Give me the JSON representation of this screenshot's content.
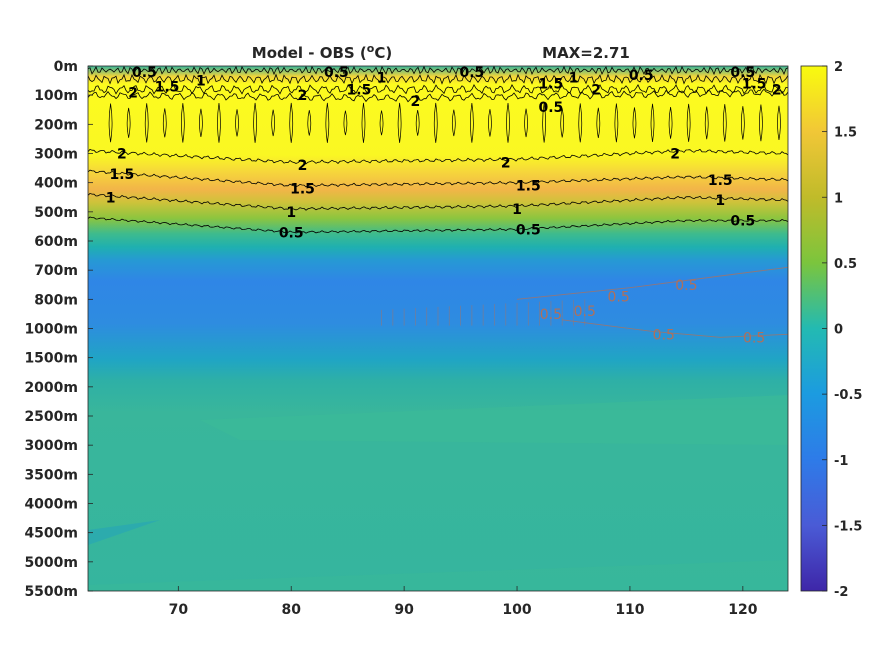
{
  "chart_data": {
    "type": "heatmap",
    "title": "Model - OBS (°C)",
    "title_main": "Model - OBS (",
    "title_sup": "o",
    "title_end": "C)",
    "annotation": "MAX=2.71",
    "x_ticks": [
      70,
      80,
      90,
      100,
      110,
      120
    ],
    "xlim": [
      62,
      124
    ],
    "y_ticks": [
      "0m",
      "100m",
      "200m",
      "300m",
      "400m",
      "500m",
      "600m",
      "700m",
      "800m",
      "1000m",
      "1500m",
      "2000m",
      "2500m",
      "3000m",
      "3500m",
      "4000m",
      "4500m",
      "5000m",
      "5500m"
    ],
    "colorbar": {
      "ticks": [
        2,
        1.5,
        1,
        0.5,
        0,
        -0.5,
        -1,
        -1.5,
        -2
      ],
      "range": [
        -2,
        2
      ],
      "colormap": "parula"
    },
    "contour_labels": [
      {
        "text": "0.5",
        "x": 67,
        "y": 0.2,
        "sign": "pos"
      },
      {
        "text": "1.5",
        "x": 69,
        "y": 0.7,
        "sign": "pos"
      },
      {
        "text": "1",
        "x": 72,
        "y": 0.5,
        "sign": "pos"
      },
      {
        "text": "2",
        "x": 66,
        "y": 0.9,
        "sign": "pos"
      },
      {
        "text": "0.5",
        "x": 84,
        "y": 0.2,
        "sign": "pos"
      },
      {
        "text": "1",
        "x": 88,
        "y": 0.4,
        "sign": "pos"
      },
      {
        "text": "1.5",
        "x": 86,
        "y": 0.8,
        "sign": "pos"
      },
      {
        "text": "2",
        "x": 81,
        "y": 1.0,
        "sign": "pos"
      },
      {
        "text": "2",
        "x": 91,
        "y": 1.2,
        "sign": "pos"
      },
      {
        "text": "0.5",
        "x": 96,
        "y": 0.2,
        "sign": "pos"
      },
      {
        "text": "1.5",
        "x": 103,
        "y": 0.6,
        "sign": "pos"
      },
      {
        "text": "1",
        "x": 105,
        "y": 0.4,
        "sign": "pos"
      },
      {
        "text": "2",
        "x": 107,
        "y": 0.8,
        "sign": "pos"
      },
      {
        "text": "0.5",
        "x": 111,
        "y": 0.3,
        "sign": "pos"
      },
      {
        "text": "0.5",
        "x": 120,
        "y": 0.2,
        "sign": "pos"
      },
      {
        "text": "1.5",
        "x": 121,
        "y": 0.6,
        "sign": "pos"
      },
      {
        "text": "2",
        "x": 123,
        "y": 0.8,
        "sign": "pos"
      },
      {
        "text": "2",
        "x": 65,
        "y": 3.0,
        "sign": "pos"
      },
      {
        "text": "1.5",
        "x": 65,
        "y": 3.7,
        "sign": "pos"
      },
      {
        "text": "1",
        "x": 64,
        "y": 4.5,
        "sign": "pos"
      },
      {
        "text": "2",
        "x": 81,
        "y": 3.4,
        "sign": "pos"
      },
      {
        "text": "1.5",
        "x": 81,
        "y": 4.2,
        "sign": "pos"
      },
      {
        "text": "1",
        "x": 80,
        "y": 5.0,
        "sign": "pos"
      },
      {
        "text": "0.5",
        "x": 80,
        "y": 5.7,
        "sign": "pos"
      },
      {
        "text": "2",
        "x": 99,
        "y": 3.3,
        "sign": "pos"
      },
      {
        "text": "1.5",
        "x": 101,
        "y": 4.1,
        "sign": "pos"
      },
      {
        "text": "1",
        "x": 100,
        "y": 4.9,
        "sign": "pos"
      },
      {
        "text": "0.5",
        "x": 101,
        "y": 5.6,
        "sign": "pos"
      },
      {
        "text": "2",
        "x": 114,
        "y": 3.0,
        "sign": "pos"
      },
      {
        "text": "1.5",
        "x": 118,
        "y": 3.9,
        "sign": "pos"
      },
      {
        "text": "1",
        "x": 118,
        "y": 4.6,
        "sign": "pos"
      },
      {
        "text": "0.5",
        "x": 120,
        "y": 5.3,
        "sign": "pos"
      },
      {
        "text": "0.5",
        "x": 103,
        "y": 1.4,
        "sign": "pos"
      },
      {
        "text": "0.5",
        "x": 109,
        "y": 7.9,
        "sign": "neg"
      },
      {
        "text": "0.5",
        "x": 115,
        "y": 7.5,
        "sign": "neg"
      },
      {
        "text": "0.5",
        "x": 113,
        "y": 9.2,
        "sign": "neg"
      },
      {
        "text": "0.5",
        "x": 121,
        "y": 9.3,
        "sign": "neg"
      },
      {
        "text": "0.5",
        "x": 103,
        "y": 8.5,
        "sign": "neg"
      },
      {
        "text": "0.5",
        "x": 106,
        "y": 8.4,
        "sign": "neg"
      }
    ]
  }
}
